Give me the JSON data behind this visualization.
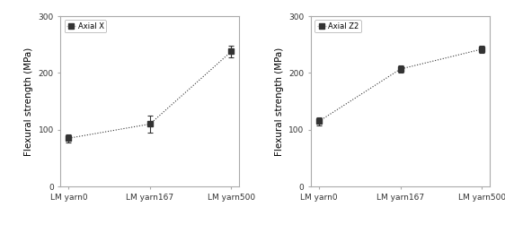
{
  "categories": [
    "LM yarn0",
    "LM yarn167",
    "LM yarn500"
  ],
  "chart1": {
    "label": "Axial X",
    "values": [
      85,
      110,
      238
    ],
    "errors": [
      7,
      15,
      10
    ]
  },
  "chart2": {
    "label": "Axial Z2",
    "values": [
      115,
      207,
      242
    ],
    "errors": [
      7,
      7,
      6
    ]
  },
  "ylabel": "Flexural strength (MPa)",
  "ylim": [
    0,
    300
  ],
  "yticks": [
    0,
    100,
    200,
    300
  ],
  "line_color": "#aaaaaa",
  "marker": "s",
  "marker_color": "#333333",
  "marker_size": 4,
  "line_style": ":",
  "legend_fontsize": 6,
  "tick_fontsize": 6.5,
  "label_fontsize": 7.5,
  "background_color": "#ffffff"
}
